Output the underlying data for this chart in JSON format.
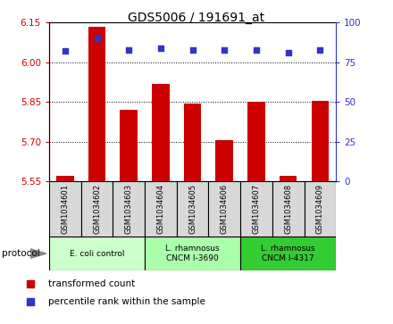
{
  "title": "GDS5006 / 191691_at",
  "samples": [
    "GSM1034601",
    "GSM1034602",
    "GSM1034603",
    "GSM1034604",
    "GSM1034605",
    "GSM1034606",
    "GSM1034607",
    "GSM1034608",
    "GSM1034609"
  ],
  "transformed_counts": [
    5.57,
    6.135,
    5.82,
    5.92,
    5.845,
    5.705,
    5.85,
    5.57,
    5.855
  ],
  "percentile_ranks": [
    82,
    90,
    83,
    84,
    83,
    83,
    83,
    81,
    83
  ],
  "ylim_left": [
    5.55,
    6.15
  ],
  "ylim_right": [
    0,
    100
  ],
  "yticks_left": [
    5.55,
    5.7,
    5.85,
    6.0,
    6.15
  ],
  "yticks_right": [
    0,
    25,
    50,
    75,
    100
  ],
  "bar_color": "#cc0000",
  "dot_color": "#3333cc",
  "group_labels": [
    "E. coli control",
    "L. rhamnosus\nCNCM I-3690",
    "L. rhamnosus\nCNCM I-4317"
  ],
  "group_starts": [
    0,
    3,
    6
  ],
  "group_ends": [
    3,
    6,
    9
  ],
  "group_colors": [
    "#ccffcc",
    "#aaffaa",
    "#33cc33"
  ],
  "legend_bar_label": "transformed count",
  "legend_dot_label": "percentile rank within the sample",
  "protocol_label": "protocol",
  "sample_box_color": "#d8d8d8",
  "base_value": 5.55,
  "bar_width": 0.55
}
